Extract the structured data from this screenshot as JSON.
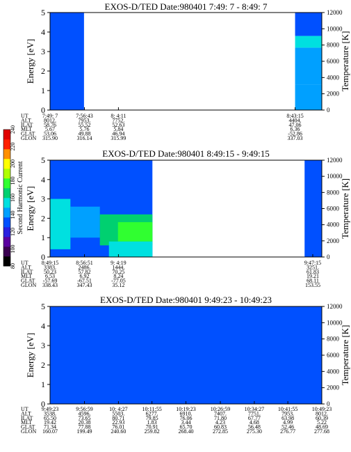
{
  "colorbar": {
    "label": "Second Harmonic Current",
    "ticks": [
      "80",
      "100",
      "120",
      "140",
      "160",
      "180",
      "200",
      "220",
      "240"
    ],
    "colors": [
      "#000000",
      "#3a0050",
      "#5a00a0",
      "#2a20e0",
      "#0050ff",
      "#00a0ff",
      "#00e0e0",
      "#00d070",
      "#30ff30",
      "#b0ff00",
      "#ffff00",
      "#ff9000",
      "#ff2000",
      "#e00000"
    ]
  },
  "chart_data": [
    {
      "type": "heatmap",
      "title": "EXOS-D/TED   Date:980401  7:49: 7 - 8:49: 7",
      "ylabel": "Energy [eV]",
      "y2label": "Temperature [K]",
      "ylim": [
        0,
        5
      ],
      "y2lim": [
        0,
        12000
      ],
      "yticks": [
        "0",
        "1",
        "2",
        "3",
        "4",
        "5"
      ],
      "y2ticks": [
        "0",
        "2000",
        "4000",
        "6000",
        "8000",
        "10000",
        "12000"
      ],
      "x_start_min": 0,
      "x_end_min": 60,
      "data_segments_min": [
        [
          0,
          7.5
        ],
        [
          54.1,
          60
        ]
      ],
      "blocks": [
        {
          "t0": 0,
          "t1": 7.5,
          "e0": 0,
          "e1": 5,
          "value": 130
        },
        {
          "t0": 54.1,
          "t1": 60,
          "e0": 0,
          "e1": 1.3,
          "value": 138
        },
        {
          "t0": 54.1,
          "t1": 60,
          "e0": 1.3,
          "e1": 3.2,
          "value": 148
        },
        {
          "t0": 54.1,
          "t1": 60,
          "e0": 3.2,
          "e1": 3.8,
          "value": 158
        },
        {
          "t0": 54.1,
          "t1": 60,
          "e0": 3.8,
          "e1": 5,
          "value": 128
        }
      ],
      "row_labels": [
        "UT",
        "ALT",
        "ILAT",
        "MLT",
        "GLAT",
        "GLON"
      ],
      "columns": [
        {
          "t": 0,
          "values": [
            "7:49: 7",
            "8012.",
            "58.76",
            "5.67",
            "53.06",
            "315.90"
          ]
        },
        {
          "t": 7.6,
          "values": [
            "7:56:43",
            "7953.",
            "55.52",
            "5.76",
            "49.88",
            "316.14"
          ]
        },
        {
          "t": 15.1,
          "values": [
            "8: 4:11",
            "7752.",
            "52.63",
            "5.84",
            "46.94",
            "315.99"
          ]
        },
        {
          "t": 54.1,
          "values": [
            "8:43:15",
            "4404.",
            "47.06",
            "6.36",
            "-52.86",
            "337.03"
          ]
        }
      ]
    },
    {
      "type": "heatmap",
      "title": "EXOS-D/TED   Date:980401  8:49:15 - 9:49:15",
      "ylabel": "Energy [eV]",
      "y2label": "Temperature [K]",
      "ylim": [
        0,
        5
      ],
      "y2lim": [
        0,
        12000
      ],
      "yticks": [
        "0",
        "1",
        "2",
        "3",
        "4",
        "5"
      ],
      "y2ticks": [
        "0",
        "2000",
        "4000",
        "6000",
        "8000",
        "10000",
        "12000"
      ],
      "x_start_min": 0,
      "x_end_min": 60,
      "data_segments_min": [
        [
          0,
          22.6
        ],
        [
          56.2,
          60
        ]
      ],
      "blocks": [
        {
          "t0": 0,
          "t1": 22.6,
          "e0": 0,
          "e1": 5,
          "value": 135
        },
        {
          "t0": 0,
          "t1": 4.5,
          "e0": 0.4,
          "e1": 3.0,
          "value": 158
        },
        {
          "t0": 4.5,
          "t1": 11,
          "e0": 1.0,
          "e1": 2.6,
          "value": 144
        },
        {
          "t0": 11,
          "t1": 22.6,
          "e0": 0.6,
          "e1": 2.2,
          "value": 165
        },
        {
          "t0": 15,
          "t1": 22.6,
          "e0": 0.8,
          "e1": 1.8,
          "value": 176
        },
        {
          "t0": 13,
          "t1": 22.6,
          "e0": 0,
          "e1": 0.8,
          "value": 155
        },
        {
          "t0": 56.2,
          "t1": 60,
          "e0": 0,
          "e1": 5,
          "value": 128
        }
      ],
      "row_labels": [
        "UT",
        "ALT",
        "ILAT",
        "MLT",
        "GLAT",
        "GLON"
      ],
      "columns": [
        {
          "t": 0,
          "values": [
            "8:49:15",
            "3383.",
            "50.23",
            "6.53",
            "-57.69",
            "338.43"
          ]
        },
        {
          "t": 7.6,
          "values": [
            "8:56:51",
            "2486.",
            "57.82",
            "6.92",
            "-67.51",
            "347.43"
          ]
        },
        {
          "t": 15.1,
          "values": [
            "9: 4:19",
            "1444.",
            "70.25",
            "8.24",
            "-77.05",
            "35.12"
          ]
        },
        {
          "t": 58,
          "values": [
            "9:47:15",
            "3251.",
            "61.83",
            "19.21",
            "68.11",
            "153.55"
          ]
        }
      ]
    },
    {
      "type": "heatmap",
      "title": "EXOS-D/TED   Date:980401  9:49:23 - 10:49:23",
      "ylabel": "Energy [eV]",
      "y2label": "Temperature [K]",
      "ylim": [
        0,
        5
      ],
      "y2lim": [
        0,
        12000
      ],
      "yticks": [
        "0",
        "1",
        "2",
        "3",
        "4",
        "5"
      ],
      "y2ticks": [
        "0",
        "2000",
        "4000",
        "6000",
        "8000",
        "10000",
        "12000"
      ],
      "x_start_min": 0,
      "x_end_min": 60,
      "data_segments_min": [
        [
          0,
          60
        ]
      ],
      "blocks": [
        {
          "t0": 0,
          "t1": 60,
          "e0": 0,
          "e1": 5,
          "value": 130
        }
      ],
      "row_labels": [
        "UT",
        "ALT",
        "ILAT",
        "MLT",
        "GLAT",
        "GLON"
      ],
      "columns": [
        {
          "t": 0,
          "values": [
            "9:49:23",
            "3538.",
            "65.50",
            "19.42",
            "71.34",
            "160.07"
          ]
        },
        {
          "t": 7.6,
          "values": [
            "9:56:59",
            "4596.",
            "73.65",
            "20.38",
            "77.88",
            "199.49"
          ]
        },
        {
          "t": 15.1,
          "values": [
            "10: 4:27",
            "5503.",
            "80.71",
            "22.93",
            "76.01",
            "240.60"
          ]
        },
        {
          "t": 22.5,
          "values": [
            "10:11:55",
            "6277.",
            "79.85",
            "1.83",
            "70.91",
            "259.82"
          ]
        },
        {
          "t": 30,
          "values": [
            "10:19:23",
            "6910.",
            "76.06",
            "3.44",
            "65.70",
            "268.40"
          ]
        },
        {
          "t": 37.6,
          "values": [
            "10:26:59",
            "7407.",
            "71.80",
            "4.23",
            "60.83",
            "272.85"
          ]
        },
        {
          "t": 45.1,
          "values": [
            "10:34:27",
            "7751.",
            "67.77",
            "4.68",
            "56.48",
            "275.30"
          ]
        },
        {
          "t": 52.5,
          "values": [
            "10:41:55",
            "7953.",
            "63.98",
            "4.99",
            "52.46",
            "276.77"
          ]
        },
        {
          "t": 60,
          "values": [
            "10:49:23",
            "8012.",
            "60.39",
            "5.22",
            "48.69",
            "277.68"
          ]
        }
      ]
    }
  ]
}
